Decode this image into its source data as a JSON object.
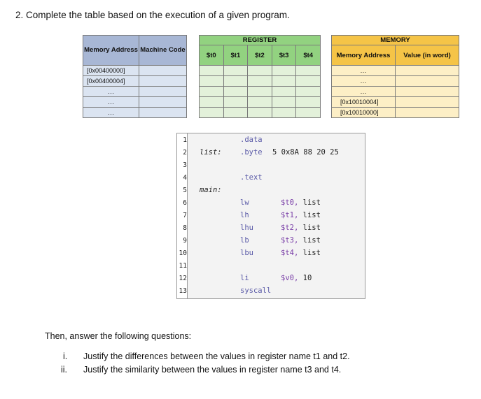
{
  "question_title": "2. Complete the table based on the execution of a given program.",
  "left_table": {
    "header_address": "Memory Address",
    "header_code": "Machine Code",
    "rows": [
      {
        "address": "[0x00400000]",
        "code": ""
      },
      {
        "address": "[0x00400004]",
        "code": ""
      },
      {
        "address": "…",
        "code": ""
      },
      {
        "address": "…",
        "code": ""
      },
      {
        "address": "…",
        "code": ""
      }
    ]
  },
  "register_table": {
    "title": "REGISTER",
    "columns": [
      "$t0",
      "$t1",
      "$t2",
      "$t3",
      "$t4"
    ],
    "row_count": 5
  },
  "memory_table": {
    "title": "MEMORY",
    "header_address": "Memory Address",
    "header_value": "Value (in word)",
    "rows": [
      {
        "address": "…",
        "value": ""
      },
      {
        "address": "…",
        "value": ""
      },
      {
        "address": "…",
        "value": ""
      },
      {
        "address": "[0x10010004]",
        "value": ""
      },
      {
        "address": "[0x10010000]",
        "value": ""
      }
    ]
  },
  "code": {
    "line_numbers": [
      "1",
      "2",
      "3",
      "4",
      "5",
      "6",
      "7",
      "8",
      "9",
      "10",
      "11",
      "12",
      "13"
    ],
    "lines": [
      {
        "label": "",
        "op": ".data",
        "args": ""
      },
      {
        "label": "list:",
        "op": ".byte",
        "args": "5 0x8A 88 20 25"
      },
      {
        "label": "",
        "op": "",
        "args": ""
      },
      {
        "label": "",
        "op": ".text",
        "args": ""
      },
      {
        "label": "main:",
        "op": "",
        "args": ""
      },
      {
        "label": "",
        "op": "lw",
        "args_reg": "$t0,",
        "args_rest": "list"
      },
      {
        "label": "",
        "op": "lh",
        "args_reg": "$t1,",
        "args_rest": "list"
      },
      {
        "label": "",
        "op": "lhu",
        "args_reg": "$t2,",
        "args_rest": "list"
      },
      {
        "label": "",
        "op": "lb",
        "args_reg": "$t3,",
        "args_rest": "list"
      },
      {
        "label": "",
        "op": "lbu",
        "args_reg": "$t4,",
        "args_rest": "list"
      },
      {
        "label": "",
        "op": "",
        "args": ""
      },
      {
        "label": "",
        "op": "li",
        "args_reg": "$v0,",
        "args_rest": "10"
      },
      {
        "label": "",
        "op": "syscall",
        "args": ""
      }
    ]
  },
  "questions_intro": "Then, answer the following questions:",
  "questions": [
    {
      "num": "i.",
      "text": "Justify the differences between the values in register name t1 and t2."
    },
    {
      "num": "ii.",
      "text": "Justify the similarity between the values in register name t3 and t4."
    }
  ]
}
